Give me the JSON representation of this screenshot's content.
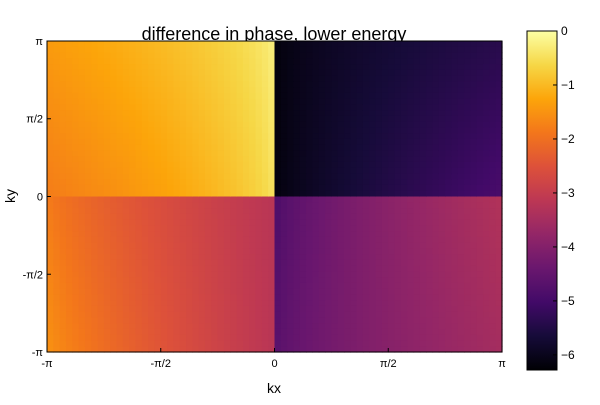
{
  "chart_data": {
    "type": "heatmap",
    "title": "difference in phase, lower energy",
    "xlabel": "kx",
    "ylabel": "ky",
    "xlim": [
      -3.14159,
      3.14159
    ],
    "ylim": [
      -3.14159,
      3.14159
    ],
    "x_ticks": [
      {
        "value": -3.14159,
        "label": "-π"
      },
      {
        "value": -1.5708,
        "label": "-π/2"
      },
      {
        "value": 0,
        "label": "0"
      },
      {
        "value": 1.5708,
        "label": "π/2"
      },
      {
        "value": 3.14159,
        "label": "π"
      }
    ],
    "y_ticks": [
      {
        "value": -3.14159,
        "label": "-π"
      },
      {
        "value": -1.5708,
        "label": "-π/2"
      },
      {
        "value": 0,
        "label": "0"
      },
      {
        "value": 1.5708,
        "label": "π/2"
      },
      {
        "value": 3.14159,
        "label": "π"
      }
    ],
    "colorbar": {
      "range": [
        -6.28,
        0
      ],
      "ticks": [
        {
          "value": 0,
          "label": "0"
        },
        {
          "value": -1,
          "label": "−1"
        },
        {
          "value": -2,
          "label": "−2"
        },
        {
          "value": -3,
          "label": "−3"
        },
        {
          "value": -4,
          "label": "−4"
        },
        {
          "value": -5,
          "label": "−5"
        },
        {
          "value": -6,
          "label": "−6"
        }
      ],
      "colormap": "inferno"
    },
    "quadrants": [
      {
        "name": "upper-left",
        "kx_range": [
          -3.14159,
          0
        ],
        "ky_range": [
          0,
          3.14159
        ],
        "approx_value_range": [
          -1.8,
          -0.2
        ]
      },
      {
        "name": "upper-right",
        "kx_range": [
          0,
          3.14159
        ],
        "ky_range": [
          0,
          3.14159
        ],
        "approx_value_range": [
          -6.2,
          -4.8
        ]
      },
      {
        "name": "lower-left",
        "kx_range": [
          -3.14159,
          0
        ],
        "ky_range": [
          -3.14159,
          0
        ],
        "approx_value_range": [
          -3.3,
          -1.7
        ]
      },
      {
        "name": "lower-right",
        "kx_range": [
          0,
          3.14159
        ],
        "ky_range": [
          -3.14159,
          0
        ],
        "approx_value_range": [
          -5.0,
          -3.2
        ]
      }
    ],
    "grid": false
  }
}
